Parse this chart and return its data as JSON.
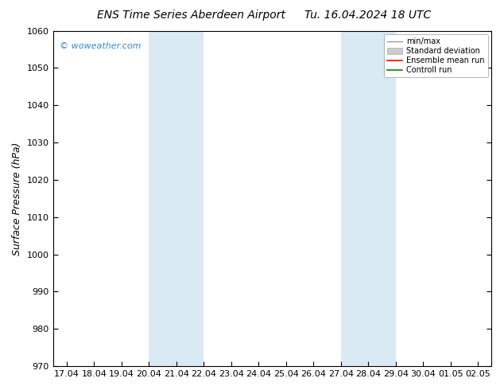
{
  "title": "ENS Time Series Aberdeen Airport",
  "title_date": "Tu. 16.04.2024 18 UTC",
  "ylabel": "Surface Pressure (hPa)",
  "ylim": [
    970,
    1060
  ],
  "yticks": [
    970,
    980,
    990,
    1000,
    1010,
    1020,
    1030,
    1040,
    1050,
    1060
  ],
  "x_labels": [
    "17.04",
    "18.04",
    "19.04",
    "20.04",
    "21.04",
    "22.04",
    "23.04",
    "24.04",
    "25.04",
    "26.04",
    "27.04",
    "28.04",
    "29.04",
    "30.04",
    "01.05",
    "02.05"
  ],
  "x_positions": [
    0,
    1,
    2,
    3,
    4,
    5,
    6,
    7,
    8,
    9,
    10,
    11,
    12,
    13,
    14,
    15
  ],
  "shaded_bands": [
    {
      "xmin": 3,
      "xmax": 5
    },
    {
      "xmin": 10,
      "xmax": 12
    }
  ],
  "shade_color": "#daeaf5",
  "background_color": "#ffffff",
  "legend_labels": [
    "min/max",
    "Standard deviation",
    "Ensemble mean run",
    "Controll run"
  ],
  "legend_colors": [
    "#999999",
    "#cccccc",
    "#ff0000",
    "#008800"
  ],
  "watermark": "© woweather.com",
  "watermark_color": "#3388cc",
  "title_fontsize": 10,
  "axis_label_fontsize": 9,
  "tick_fontsize": 8,
  "legend_fontsize": 7
}
